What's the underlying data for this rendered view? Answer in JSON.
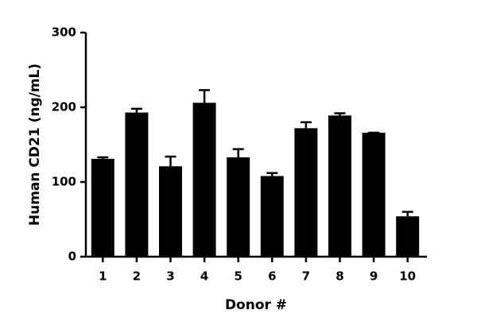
{
  "chart_data": {
    "type": "bar",
    "xlabel": "Donor #",
    "ylabel": "Human CD21 (ng/mL)",
    "categories": [
      "1",
      "2",
      "3",
      "4",
      "5",
      "6",
      "7",
      "8",
      "9",
      "10"
    ],
    "values": [
      131,
      193,
      121,
      206,
      133,
      108,
      172,
      189,
      166,
      54
    ],
    "errors": [
      2,
      5,
      13,
      17,
      11,
      4,
      8,
      3,
      0,
      6
    ],
    "color": "#000000",
    "ylim": [
      0,
      300
    ],
    "yticks": [
      0,
      100,
      200,
      300
    ],
    "grid": false
  }
}
